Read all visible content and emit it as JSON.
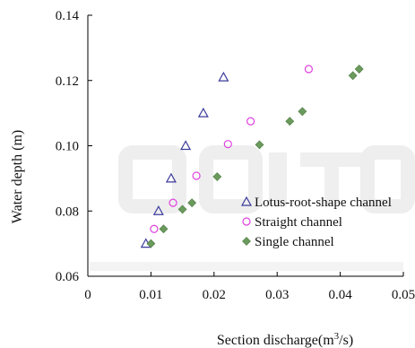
{
  "chart_data": {
    "type": "scatter",
    "xlabel_base": "Section discharge(m",
    "xlabel_sup": "3",
    "xlabel_tail": "/s)",
    "ylabel": "Water depth (m)",
    "xlim": [
      0,
      0.05
    ],
    "ylim": [
      0.06,
      0.14
    ],
    "x_ticks": [
      "0",
      "0.01",
      "0.02",
      "0.03",
      "0.04",
      "0.05"
    ],
    "y_ticks": [
      "0.06",
      "0.08",
      "0.10",
      "0.12",
      "0.14"
    ],
    "x_tick_values": [
      0,
      0.01,
      0.02,
      0.03,
      0.04,
      0.05
    ],
    "y_tick_values": [
      0.06,
      0.08,
      0.1,
      0.12,
      0.14
    ],
    "grid": false,
    "legend_position": "lower-right",
    "series": [
      {
        "name": "Lotus-root-shape channel",
        "marker": "triangle-open",
        "color": "#3a3a9c",
        "x": [
          0.0092,
          0.0112,
          0.0132,
          0.0155,
          0.0183,
          0.0215
        ],
        "y": [
          0.07,
          0.08,
          0.09,
          0.1,
          0.11,
          0.121
        ]
      },
      {
        "name": "Straight channel",
        "marker": "circle-open",
        "color": "#e040e0",
        "x": [
          0.0105,
          0.0135,
          0.0172,
          0.0222,
          0.0258,
          0.035
        ],
        "y": [
          0.0745,
          0.0825,
          0.0908,
          0.1005,
          0.1075,
          0.1235
        ]
      },
      {
        "name": "Single channel",
        "marker": "diamond-filled",
        "color": "#6a9a5c",
        "x": [
          0.01,
          0.012,
          0.015,
          0.0165,
          0.0205,
          0.0272,
          0.032,
          0.034,
          0.042,
          0.043
        ],
        "y": [
          0.07,
          0.0745,
          0.0805,
          0.0825,
          0.0905,
          0.1003,
          0.1075,
          0.1105,
          0.1215,
          0.1235
        ]
      }
    ]
  }
}
